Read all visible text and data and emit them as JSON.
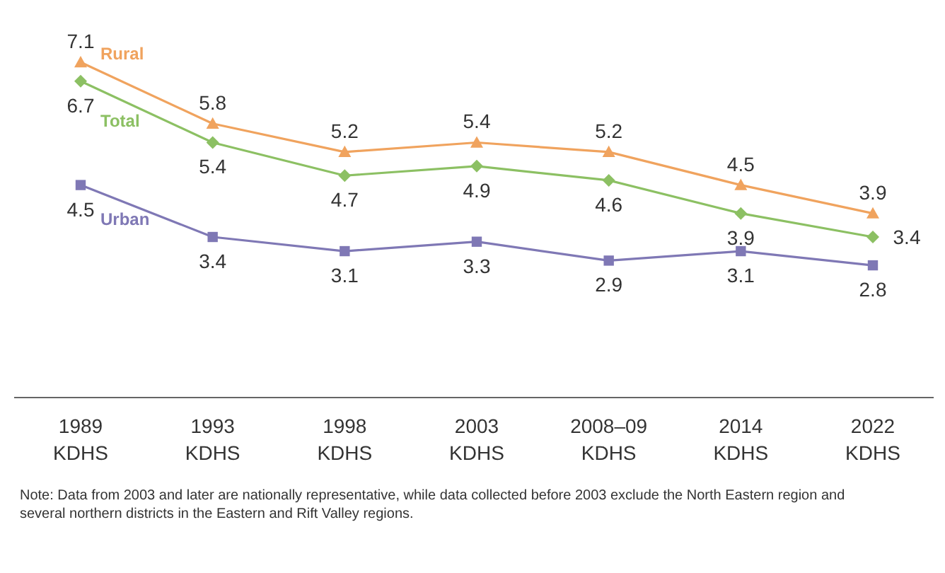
{
  "chart_data": {
    "type": "line",
    "categories": [
      "1989 KDHS",
      "1993 KDHS",
      "1998 KDHS",
      "2003 KDHS",
      "2008–09 KDHS",
      "2014 KDHS",
      "2022 KDHS"
    ],
    "series": [
      {
        "name": "Rural",
        "color": "#f0a35e",
        "marker": "triangle",
        "values": [
          7.1,
          5.8,
          5.2,
          5.4,
          5.2,
          4.5,
          3.9
        ]
      },
      {
        "name": "Total",
        "color": "#8cc063",
        "marker": "diamond",
        "values": [
          6.7,
          5.4,
          4.7,
          4.9,
          4.6,
          3.9,
          3.4
        ]
      },
      {
        "name": "Urban",
        "color": "#7f78b5",
        "marker": "square",
        "values": [
          4.5,
          3.4,
          3.1,
          3.3,
          2.9,
          3.1,
          2.8
        ]
      }
    ],
    "tick_labels": "x",
    "data_labels": true,
    "annotations": [
      "Note: Data from 2003 and later are nationally representative, while data collected before 2003 exclude the North Eastern region and several northern districts in the Eastern and Rift Valley regions."
    ]
  }
}
